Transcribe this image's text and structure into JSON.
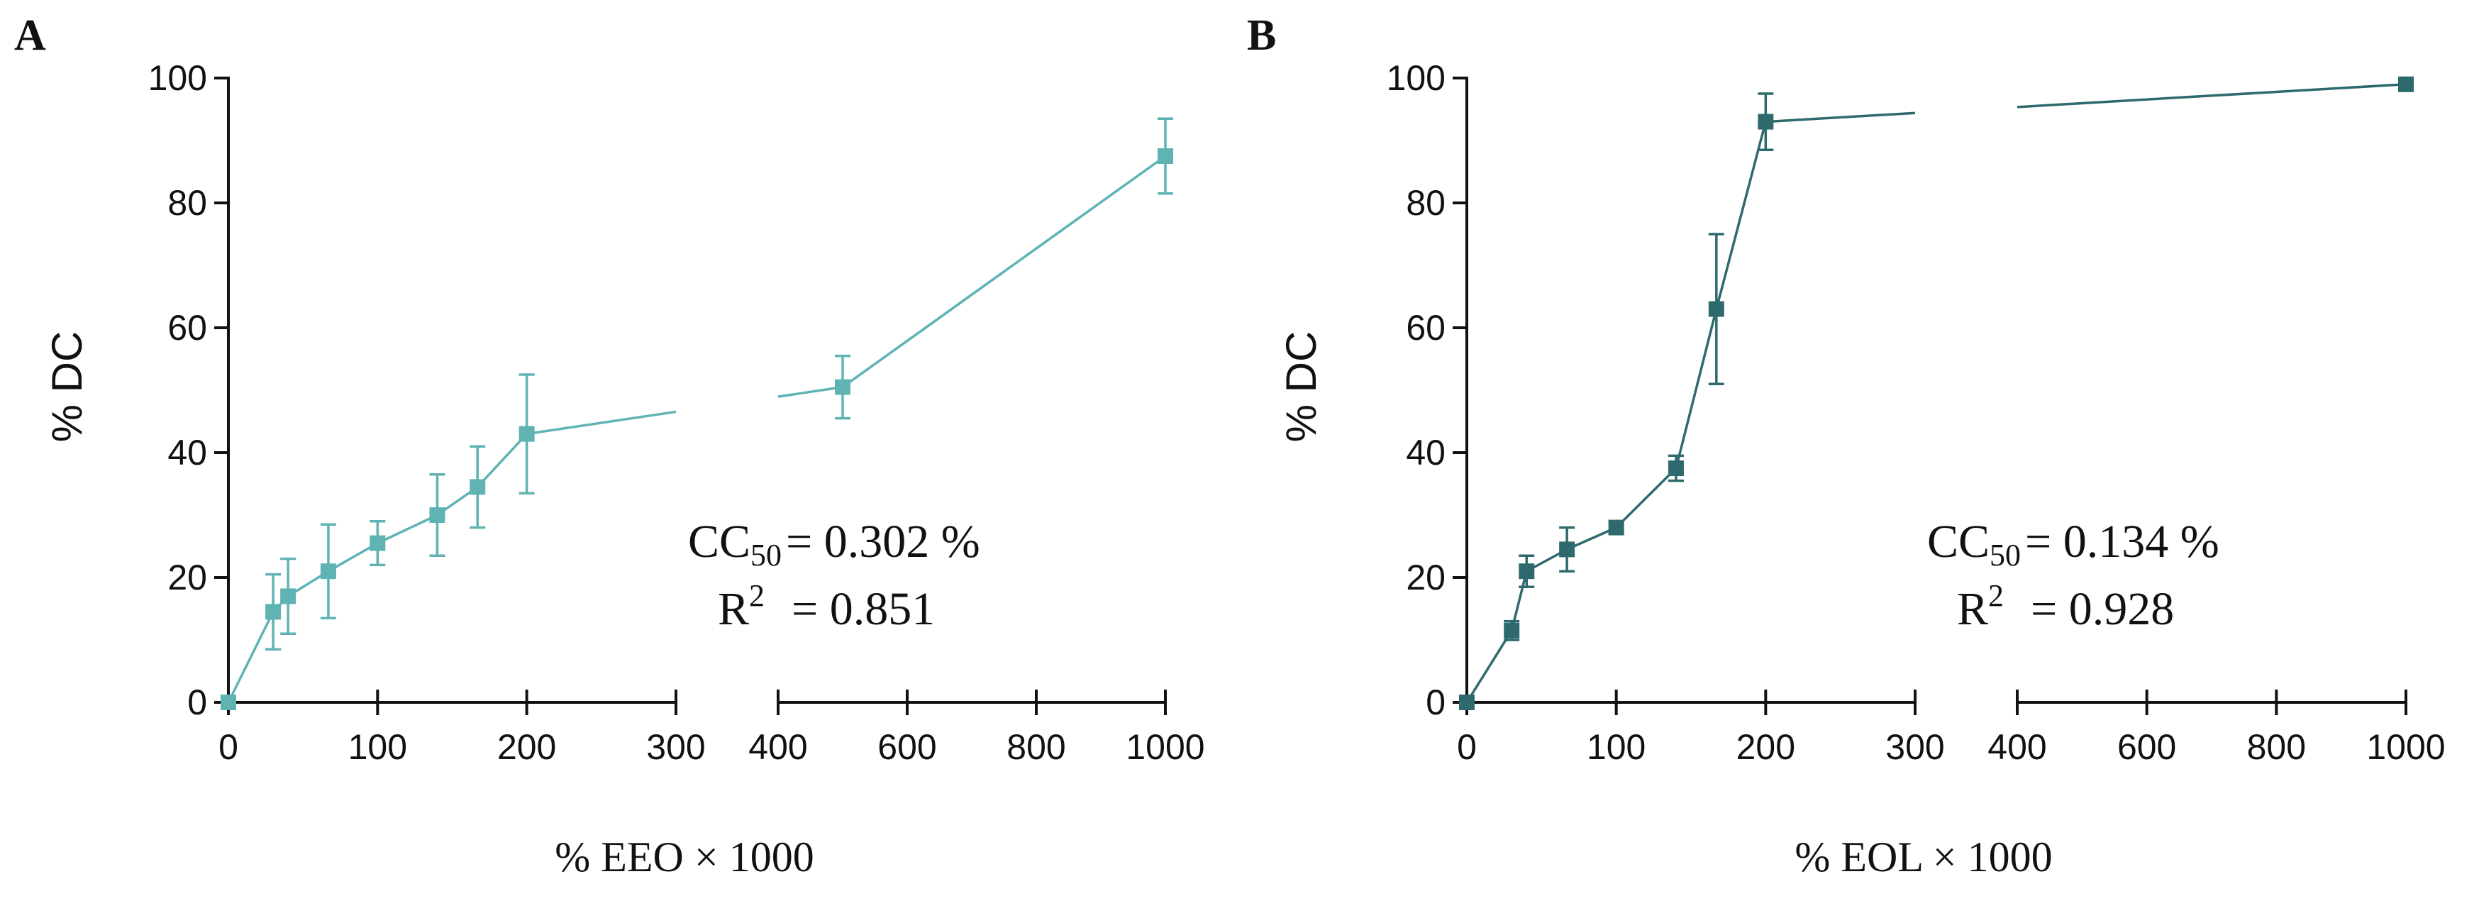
{
  "chart_data": [
    {
      "type": "line",
      "panel_label": "A",
      "xlabel": "% EEO × 1000",
      "ylabel": "% DC",
      "ylim": [
        0,
        100
      ],
      "y_ticks": [
        "0",
        "20",
        "40",
        "60",
        "80",
        "100"
      ],
      "x_segment1_range": [
        0,
        300
      ],
      "x_segment2_range": [
        400,
        1000
      ],
      "x_ticks_segment1": [
        "0",
        "100",
        "200",
        "300"
      ],
      "x_ticks_segment2": [
        "400",
        "600",
        "800",
        "1000"
      ],
      "series": [
        {
          "name": "EEO",
          "color": "#5fb3b3",
          "x": [
            0,
            30,
            40,
            67,
            100,
            140,
            167,
            200,
            500,
            1000
          ],
          "y": [
            0,
            14.5,
            17,
            21,
            25.5,
            30,
            34.5,
            43,
            50.5,
            87.5
          ],
          "err": [
            0,
            6,
            6,
            7.5,
            3.5,
            6.5,
            6.5,
            9.5,
            5,
            6
          ]
        }
      ],
      "annotation": {
        "cc_prefix": "CC",
        "cc_sub": "50",
        "cc_value": "= 0.302 %",
        "r_prefix": "R",
        "r_sup": "2",
        "r_value": "= 0.851"
      }
    },
    {
      "type": "line",
      "panel_label": "B",
      "xlabel": "% EOL × 1000",
      "ylabel": "% DC",
      "ylim": [
        0,
        100
      ],
      "y_ticks": [
        "0",
        "20",
        "40",
        "60",
        "80",
        "100"
      ],
      "x_segment1_range": [
        0,
        300
      ],
      "x_segment2_range": [
        400,
        1000
      ],
      "x_ticks_segment1": [
        "0",
        "100",
        "200",
        "300"
      ],
      "x_ticks_segment2": [
        "400",
        "600",
        "800",
        "1000"
      ],
      "series": [
        {
          "name": "EOL",
          "color": "#2e6a6d",
          "x": [
            0,
            30,
            40,
            67,
            100,
            140,
            167,
            200,
            1000
          ],
          "y": [
            0,
            11.5,
            21,
            24.5,
            28,
            37.5,
            63,
            93,
            99
          ],
          "err": [
            0,
            1.5,
            2.5,
            3.5,
            1,
            2,
            12,
            4.5,
            0.5
          ]
        }
      ],
      "annotation": {
        "cc_prefix": "CC",
        "cc_sub": "50",
        "cc_value": "= 0.134 %",
        "r_prefix": "R",
        "r_sup": "2",
        "r_value": "= 0.928"
      }
    }
  ]
}
